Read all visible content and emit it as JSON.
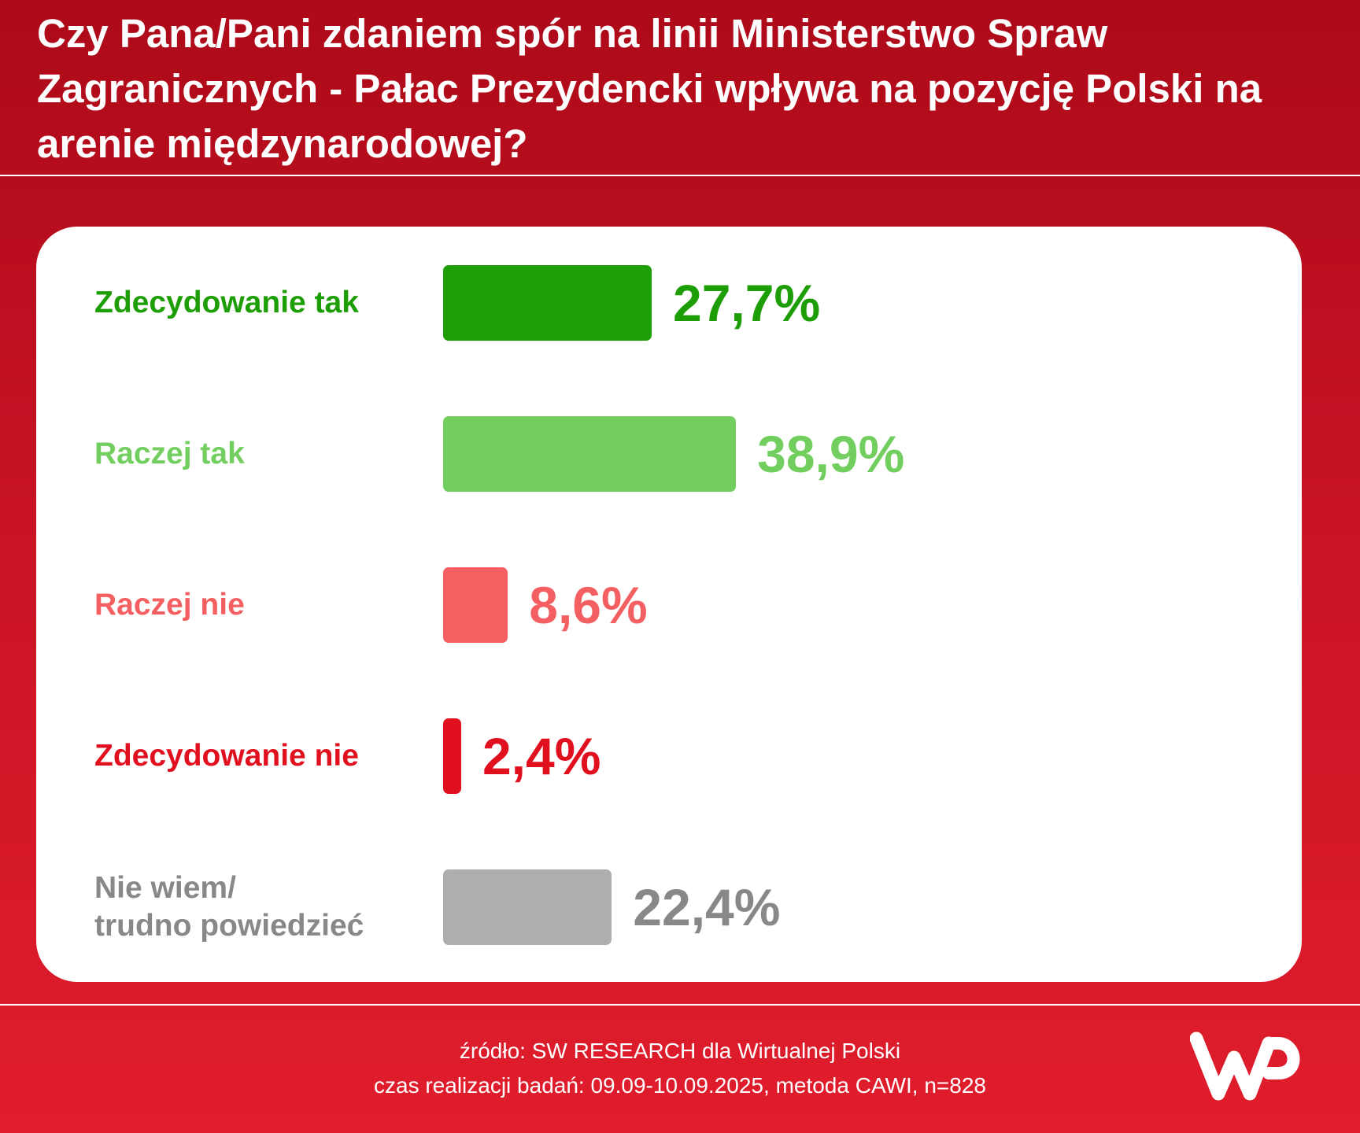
{
  "title": "Czy Pana/Pani zdaniem spór na linii Ministerstwo Spraw Zagranicznych - Pałac Prezydencki wpływa na pozycję Polski na arenie międzynarodowej?",
  "chart_data": {
    "type": "bar",
    "orientation": "horizontal",
    "categories": [
      "Zdecydowanie tak",
      "Raczej tak",
      "Raczej nie",
      "Zdecydowanie nie",
      "Nie wiem/\ntrudno powiedzieć"
    ],
    "values": [
      27.7,
      38.9,
      8.6,
      2.4,
      22.4
    ],
    "value_labels": [
      "27,7%",
      "38,9%",
      "8,6%",
      "2,4%",
      "22,4%"
    ],
    "colors": [
      "#1e9e06",
      "#72cf5f",
      "#f45f62",
      "#e0101f",
      "#aeaeae"
    ],
    "label_colors": [
      "#1e9e06",
      "#72cf5f",
      "#f45f62",
      "#e0101f",
      "#888888"
    ],
    "xlim": [
      0,
      100
    ],
    "grid": false,
    "legend": "none"
  },
  "footer": {
    "source": "źródło: SW RESEARCH dla Wirtualnej Polski",
    "details": "czas realizacji badań: 09.09-10.09.2025, metoda CAWI, n=828"
  },
  "logo": {
    "name": "WP",
    "icon": "wp-logo-icon",
    "color": "#ffffff"
  }
}
